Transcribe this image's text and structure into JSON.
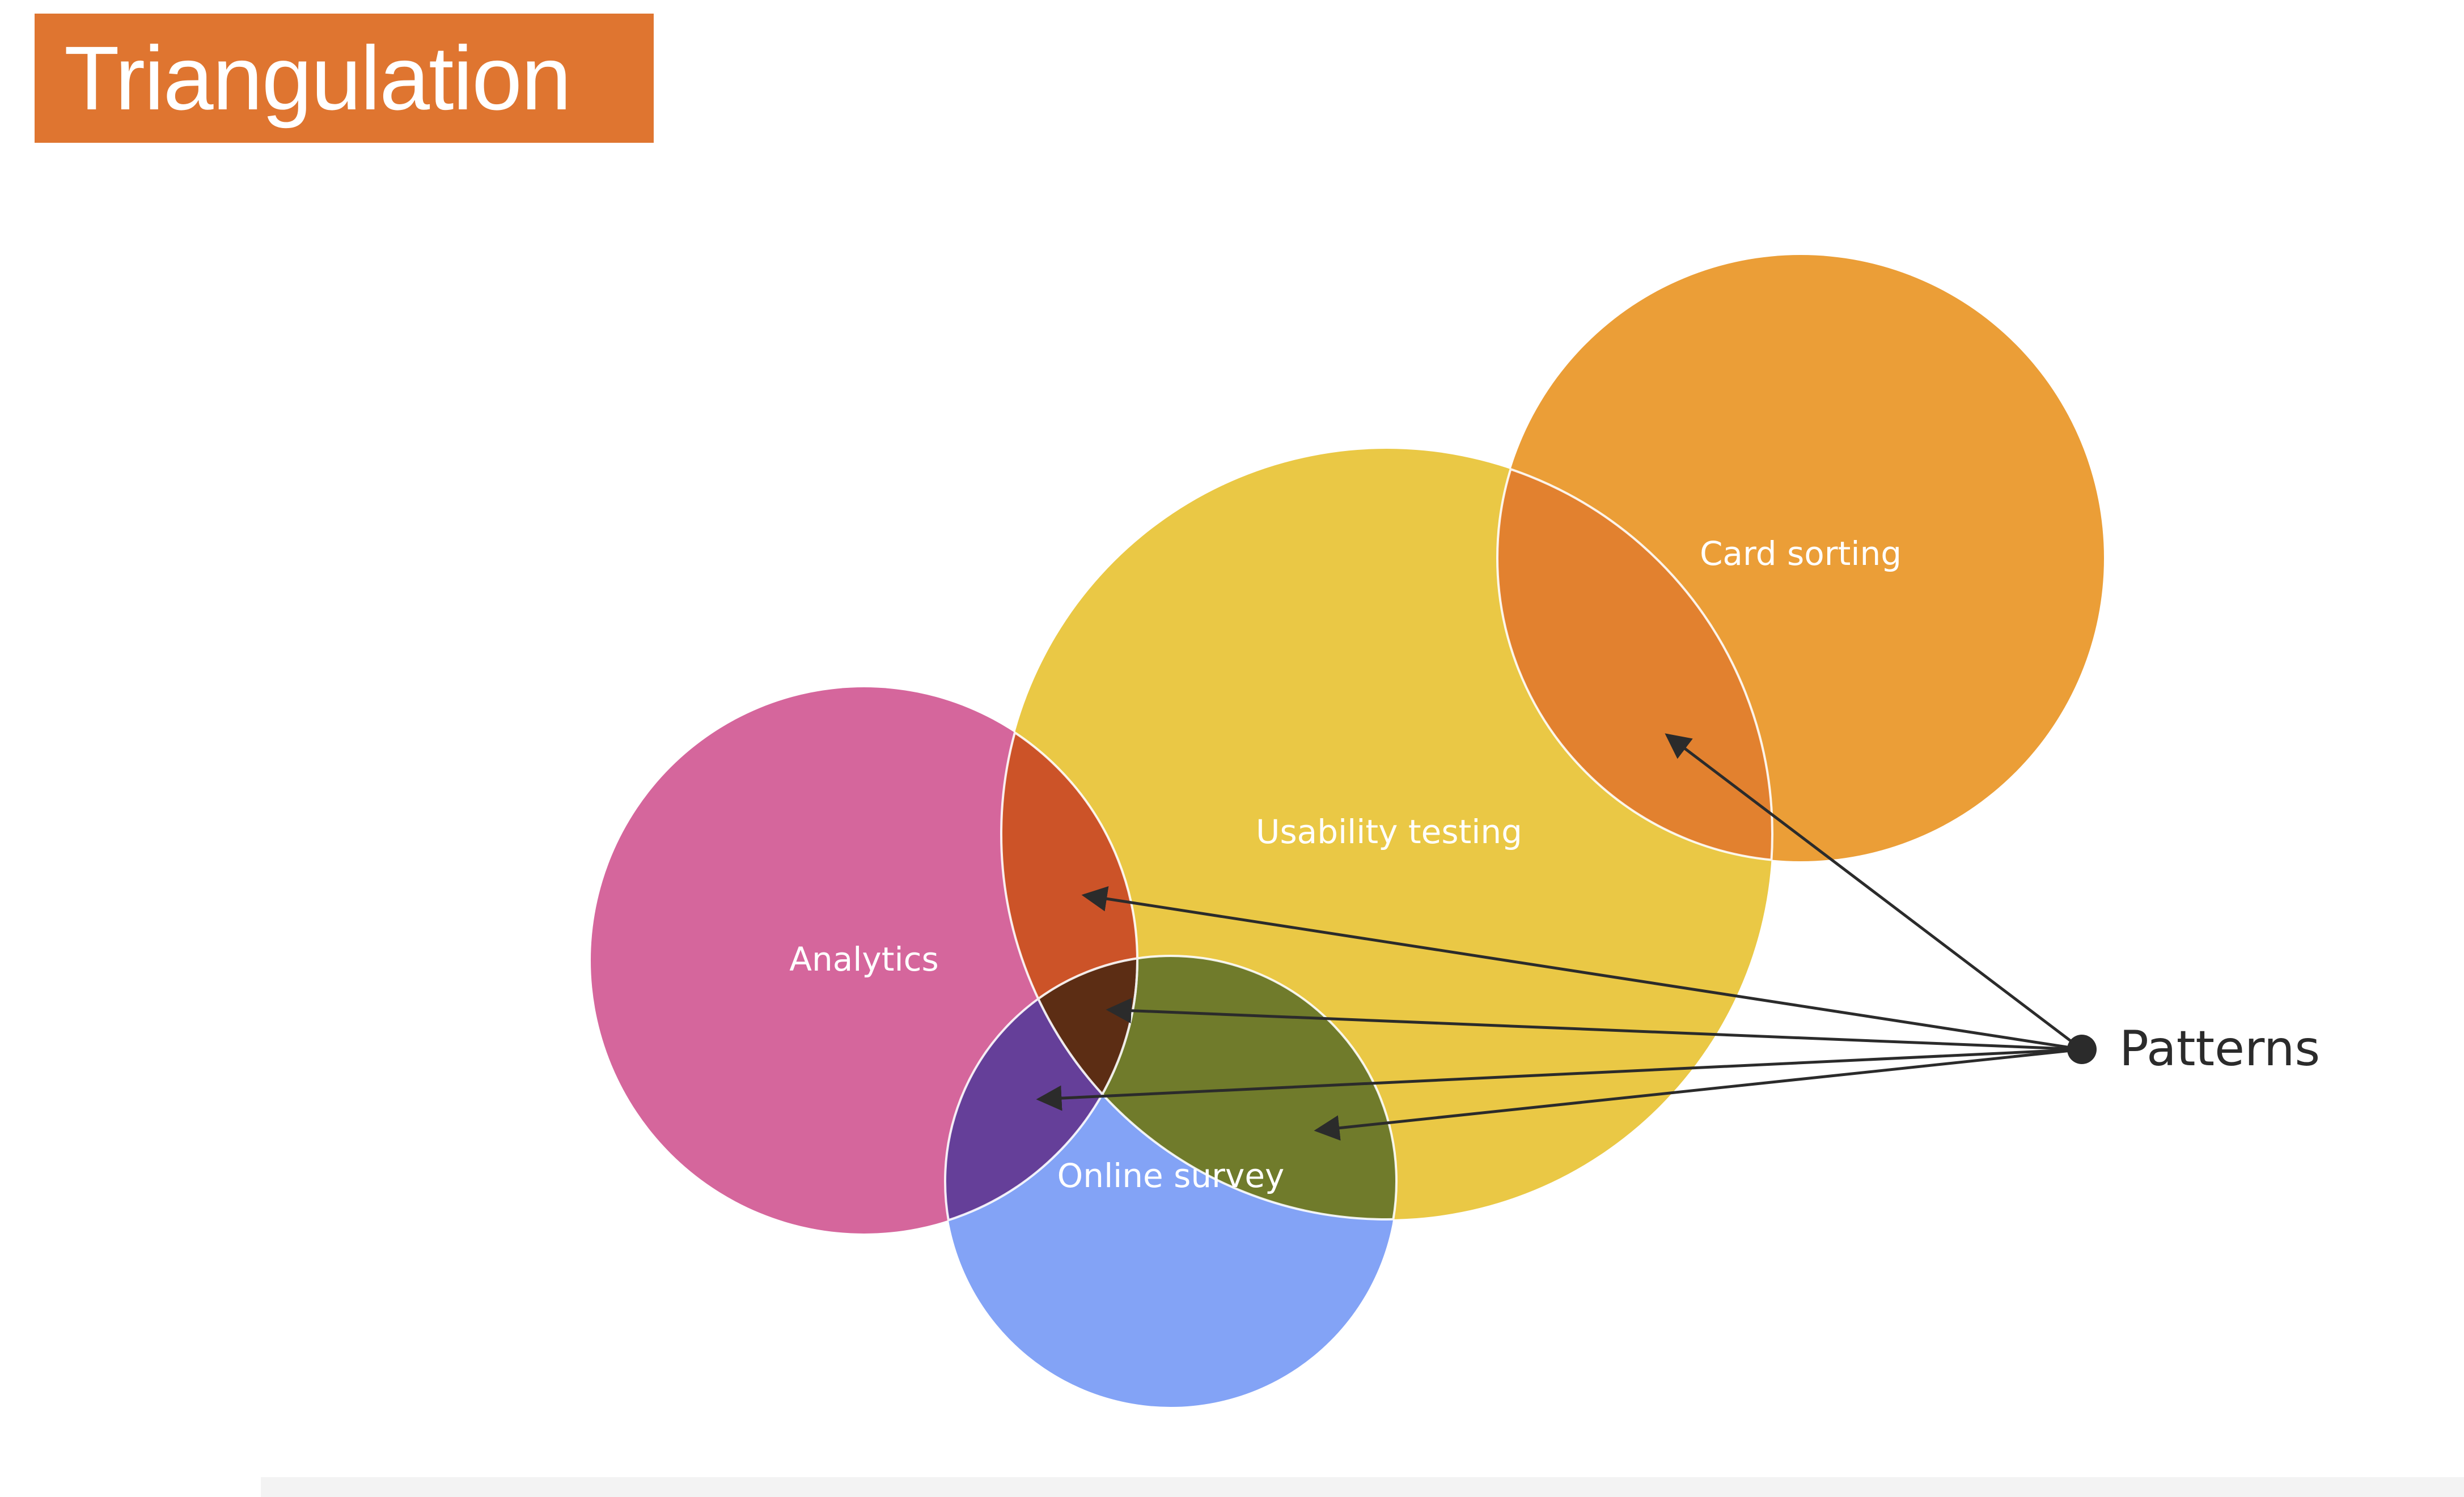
{
  "title": "Triangulation",
  "colors": {
    "banner": "#df7530",
    "analytics": "#d5669c",
    "usability": "#eac845",
    "card_sorting": "#eb9e37",
    "online_survey": "#83a3f6",
    "analytics_usability": "#cc5328",
    "analytics_survey": "#653f99",
    "usability_survey": "#707b2b",
    "analytics_usability_survey": "#5c2d14",
    "usability_card": "#e2812f",
    "arrow": "#2b2b2b"
  },
  "diagram": {
    "sets": [
      {
        "id": "analytics",
        "label": "Analytics"
      },
      {
        "id": "usability",
        "label": "Usability testing"
      },
      {
        "id": "card_sorting",
        "label": "Card sorting"
      },
      {
        "id": "online_survey",
        "label": "Online survey"
      }
    ],
    "source": {
      "label": "Patterns"
    },
    "arrows": [
      {
        "from": "Patterns",
        "to": "Usability testing ∩ Card sorting"
      },
      {
        "from": "Patterns",
        "to": "Analytics ∩ Usability testing"
      },
      {
        "from": "Patterns",
        "to": "Analytics ∩ Usability testing ∩ Online survey"
      },
      {
        "from": "Patterns",
        "to": "Analytics ∩ Online survey"
      },
      {
        "from": "Patterns",
        "to": "Usability testing ∩ Online survey"
      }
    ]
  }
}
